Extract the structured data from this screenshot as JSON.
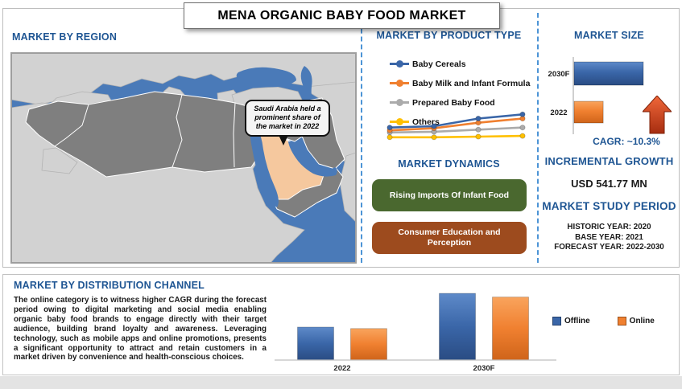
{
  "title": "MENA ORGANIC BABY FOOD MARKET",
  "region_panel": {
    "heading": "MARKET BY REGION",
    "map_callout": "Saudi Arabia held a prominent share of the market in 2022",
    "map_colors": {
      "sea": "#4a7ab8",
      "mena_countries": "#7f7f7f",
      "other_land": "#d2d2d2",
      "saudi_arabia": "#f5c89e",
      "border": "#ffffff"
    }
  },
  "product_panel": {
    "heading": "MARKET BY PRODUCT TYPE"
  },
  "dynamics_panel": {
    "heading": "MARKET DYNAMICS",
    "items": [
      {
        "label": "Rising Imports Of Infant Food",
        "color": "#4a682f"
      },
      {
        "label": "Consumer Education and Perception",
        "color": "#9d4b1e"
      }
    ]
  },
  "market_size_panel": {
    "heading": "MARKET SIZE",
    "cagr_label": "CAGR:  ~10.3%",
    "incremental_heading": "INCREMENTAL GROWTH",
    "incremental_value": "USD 541.77 MN",
    "study_period_heading": "MARKET STUDY PERIOD",
    "study_period_lines": [
      "HISTORIC YEAR: 2020",
      "BASE YEAR: 2021",
      "FORECAST YEAR: 2022-2030"
    ]
  },
  "distribution_panel": {
    "heading": "MARKET BY DISTRIBUTION CHANNEL",
    "body_text": "The online category is to witness higher CAGR during the forecast period owing to digital marketing and social media enabling organic baby food brands to engage directly with their target audience, building brand loyalty and awareness. Leveraging technology, such as mobile apps and online promotions, presents a significant opportunity to attract and retain customers in a market driven by convenience and health-conscious choices.",
    "legend_position": "right"
  },
  "chart_data": [
    {
      "id": "product_type_trend",
      "type": "line",
      "title": "MARKET BY PRODUCT TYPE",
      "axes_visible": false,
      "note": "no axis tick labels shown in source; values are relative estimates",
      "x": [
        1,
        2,
        3,
        4
      ],
      "series": [
        {
          "name": "Baby Cereals",
          "color": "#3a66a8",
          "values": [
            3.0,
            3.2,
            4.3,
            4.9
          ]
        },
        {
          "name": "Baby Milk and Infant Formula",
          "color": "#f08030",
          "values": [
            2.6,
            2.9,
            3.7,
            4.3
          ]
        },
        {
          "name": "Prepared Baby Food",
          "color": "#ababab",
          "values": [
            2.3,
            2.4,
            2.7,
            3.0
          ]
        },
        {
          "name": "Others",
          "color": "#ffc000",
          "values": [
            1.6,
            1.6,
            1.7,
            1.8
          ]
        }
      ],
      "legend_position": "above"
    },
    {
      "id": "market_size",
      "type": "bar",
      "orientation": "horizontal",
      "title": "MARKET SIZE",
      "categories": [
        "2030F",
        "2022"
      ],
      "values_relative_pct": [
        100,
        42
      ],
      "colors": [
        "#3a66a8",
        "#f08030"
      ],
      "note": "no value axis shown; bar lengths are relative estimates; CAGR ~10.3%, incremental growth USD 541.77 MN"
    },
    {
      "id": "distribution_channel",
      "type": "bar",
      "title": "MARKET BY DISTRIBUTION CHANNEL",
      "categories": [
        "2022",
        "2030F"
      ],
      "series": [
        {
          "name": "Offline",
          "color": "#3a66a8",
          "values_relative_pct": [
            45,
            91
          ]
        },
        {
          "name": "Online",
          "color": "#f08030",
          "values_relative_pct": [
            43,
            86
          ]
        }
      ],
      "note": "no value axis shown; bar heights are relative estimates",
      "legend_position": "right"
    }
  ]
}
